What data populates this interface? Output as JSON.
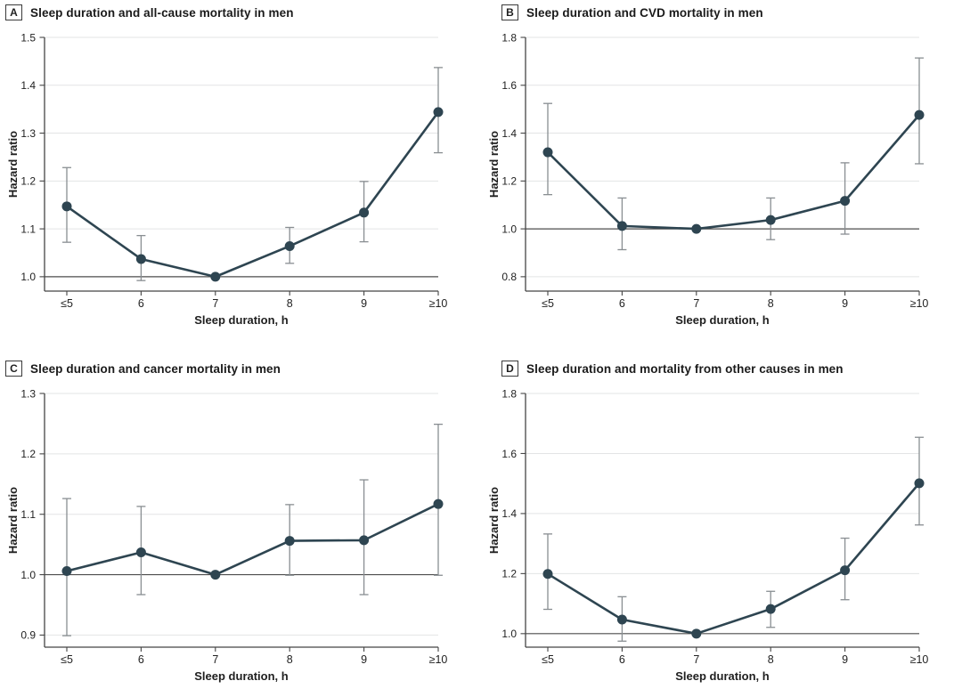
{
  "figure": {
    "panel_count": 4
  },
  "colors": {
    "line": "#2e4551",
    "marker": "#2e4551",
    "error_bar": "#898e92",
    "gridline": "#e3e4e5",
    "reference_line": "#4d4d4d",
    "axis": "#454545",
    "text": "#1f1f1f"
  },
  "chart_data": [
    {
      "panel_label": "A",
      "title": "Sleep duration and all-cause mortality in men",
      "type": "line",
      "categories": [
        "≤5",
        "6",
        "7",
        "8",
        "9",
        "≥10"
      ],
      "xlabel": "Sleep duration, h",
      "ylabel": "Hazard ratio",
      "ylim": [
        0.97,
        1.5
      ],
      "yticks": [
        1.0,
        1.1,
        1.2,
        1.3,
        1.4,
        1.5
      ],
      "reference_line": 1.0,
      "grid": true,
      "legend": "none",
      "series": [
        {
          "name": "Hazard ratio (95% CI)",
          "values": [
            1.147,
            1.037,
            1.0,
            1.064,
            1.134,
            1.344
          ],
          "ci_low": [
            1.072,
            0.992,
            null,
            1.028,
            1.073,
            1.259
          ],
          "ci_high": [
            1.228,
            1.086,
            null,
            1.103,
            1.199,
            1.437
          ]
        }
      ]
    },
    {
      "panel_label": "B",
      "title": "Sleep duration and CVD mortality in men",
      "type": "line",
      "categories": [
        "≤5",
        "6",
        "7",
        "8",
        "9",
        "≥10"
      ],
      "xlabel": "Sleep duration, h",
      "ylabel": "Hazard ratio",
      "ylim": [
        0.74,
        1.8
      ],
      "yticks": [
        0.8,
        1.0,
        1.2,
        1.4,
        1.6,
        1.8
      ],
      "reference_line": 1.0,
      "grid": true,
      "legend": "none",
      "series": [
        {
          "name": "Hazard ratio (95% CI)",
          "values": [
            1.32,
            1.012,
            1.0,
            1.037,
            1.117,
            1.476
          ],
          "ci_low": [
            1.143,
            0.913,
            null,
            0.955,
            0.978,
            1.272
          ],
          "ci_high": [
            1.524,
            1.129,
            null,
            1.129,
            1.276,
            1.714
          ]
        }
      ]
    },
    {
      "panel_label": "C",
      "title": "Sleep duration and cancer mortality in men",
      "type": "line",
      "categories": [
        "≤5",
        "6",
        "7",
        "8",
        "9",
        "≥10"
      ],
      "xlabel": "Sleep duration, h",
      "ylabel": "Hazard ratio",
      "ylim": [
        0.88,
        1.3
      ],
      "yticks": [
        0.9,
        1.0,
        1.1,
        1.2,
        1.3
      ],
      "reference_line": 1.0,
      "grid": true,
      "legend": "none",
      "series": [
        {
          "name": "Hazard ratio (95% CI)",
          "values": [
            1.006,
            1.037,
            1.0,
            1.056,
            1.057,
            1.117
          ],
          "ci_low": [
            0.899,
            0.967,
            null,
            0.999,
            0.967,
            0.999
          ],
          "ci_high": [
            1.126,
            1.113,
            null,
            1.116,
            1.157,
            1.249
          ]
        }
      ]
    },
    {
      "panel_label": "D",
      "title": "Sleep duration and mortality from other causes in men",
      "type": "line",
      "categories": [
        "≤5",
        "6",
        "7",
        "8",
        "9",
        "≥10"
      ],
      "xlabel": "Sleep duration, h",
      "ylabel": "Hazard ratio",
      "ylim": [
        0.955,
        1.8
      ],
      "yticks": [
        1.0,
        1.2,
        1.4,
        1.6,
        1.8
      ],
      "reference_line": 1.0,
      "grid": true,
      "legend": "none",
      "series": [
        {
          "name": "Hazard ratio (95% CI)",
          "values": [
            1.199,
            1.047,
            1.0,
            1.082,
            1.211,
            1.501
          ],
          "ci_low": [
            1.081,
            0.975,
            null,
            1.021,
            1.113,
            1.362
          ],
          "ci_high": [
            1.332,
            1.123,
            null,
            1.141,
            1.318,
            1.654
          ]
        }
      ]
    }
  ]
}
